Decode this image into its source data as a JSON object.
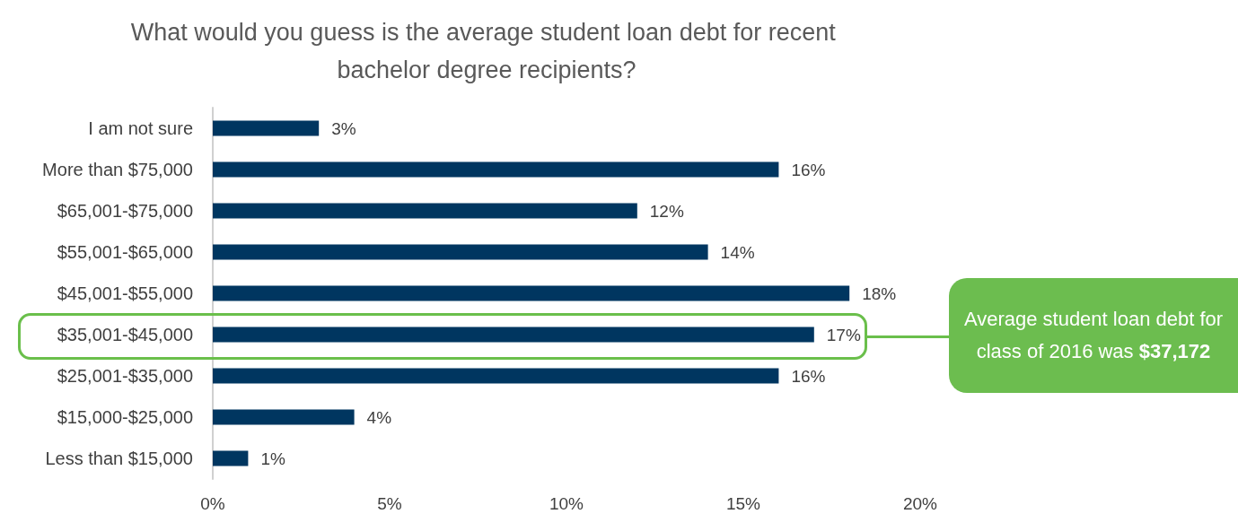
{
  "chart_data": {
    "type": "bar",
    "orientation": "horizontal",
    "title": "What would you guess is the average student loan debt for recent bachelor degree recipients?",
    "categories": [
      "I am not sure",
      "More than $75,000",
      "$65,001-$75,000",
      "$55,001-$65,000",
      "$45,001-$55,000",
      "$35,001-$45,000",
      "$25,001-$35,000",
      "$15,000-$25,000",
      "Less than $15,000"
    ],
    "values": [
      3,
      16,
      12,
      14,
      18,
      17,
      16,
      4,
      1
    ],
    "value_labels": [
      "3%",
      "16%",
      "12%",
      "14%",
      "18%",
      "17%",
      "16%",
      "4%",
      "1%"
    ],
    "color": "#003660",
    "xlim": [
      0,
      20
    ],
    "xticks": [
      {
        "value": 0,
        "label": "0%"
      },
      {
        "value": 5,
        "label": "5%"
      },
      {
        "value": 10,
        "label": "10%"
      },
      {
        "value": 15,
        "label": "15%"
      },
      {
        "value": 20,
        "label": "20%"
      }
    ],
    "grid": false,
    "annotations": [
      "Average student loan debt for class of 2016 was $37,172"
    ]
  }
}
